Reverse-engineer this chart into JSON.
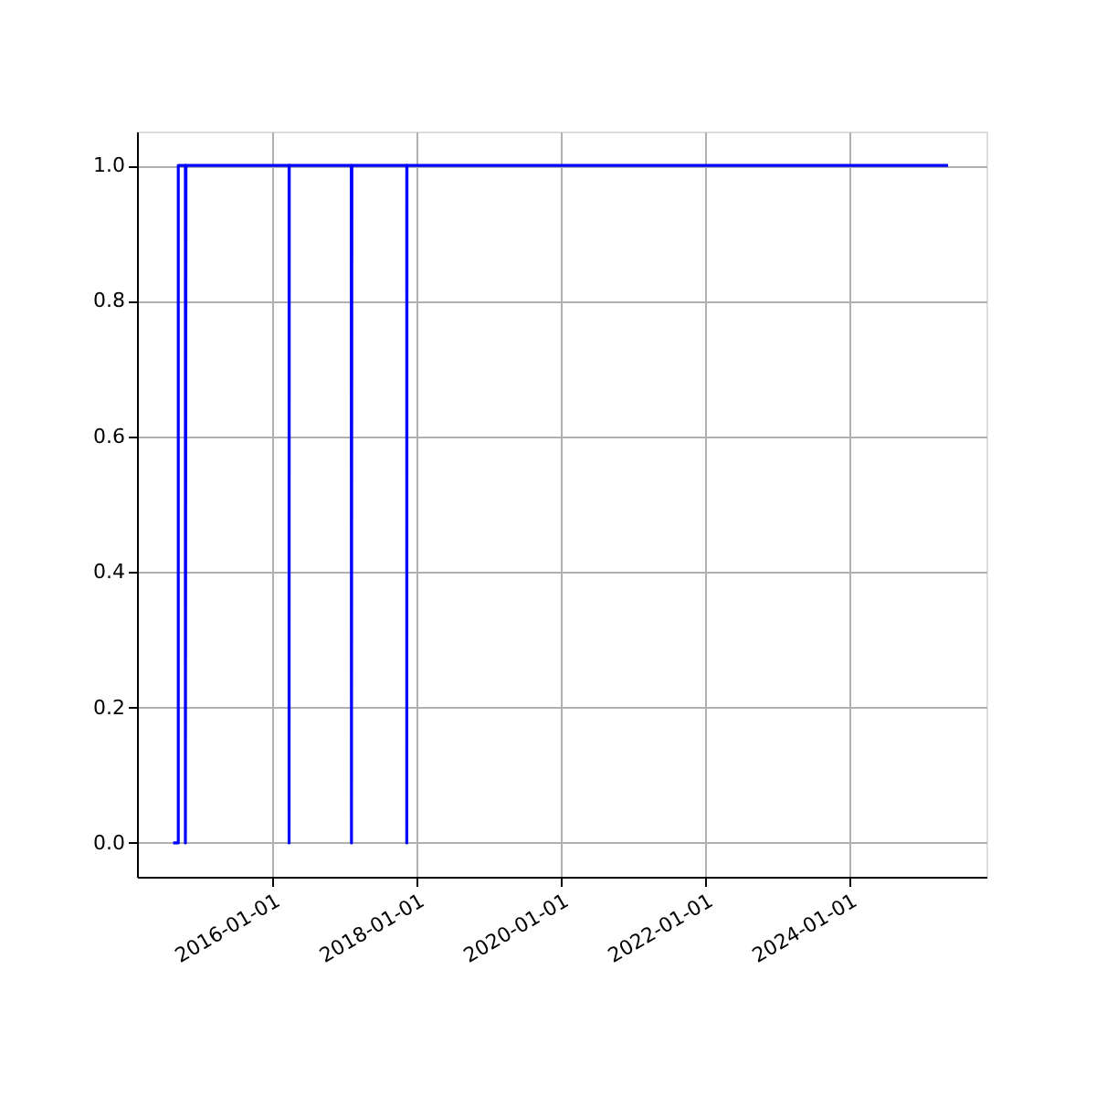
{
  "chart_data": {
    "type": "line",
    "x": [
      "2014-08-17",
      "2014-09-12",
      "2014-09-12",
      "2014-10-18",
      "2014-10-18",
      "2014-10-21",
      "2016-03-26",
      "2016-03-26",
      "2016-03-27",
      "2017-02-04",
      "2017-02-05",
      "2017-02-07",
      "2017-11-12",
      "2017-11-12",
      "2017-11-13",
      "2025-05-15"
    ],
    "series": [
      {
        "color": "#0000ff",
        "values": [
          0,
          0,
          1,
          1,
          0,
          1,
          1,
          0,
          1,
          1,
          0,
          1,
          1,
          0,
          1,
          1
        ]
      }
    ],
    "xlim": [
      "2014-02-15",
      "2025-11-25"
    ],
    "xticks": [
      "2016-01-01",
      "2018-01-01",
      "2020-01-01",
      "2022-01-01",
      "2024-01-01"
    ],
    "ylim": [
      -0.05,
      1.05
    ],
    "yticks": [
      {
        "value": 0,
        "label": "0.0"
      },
      {
        "value": 0.2,
        "label": "0.2"
      },
      {
        "value": 0.4,
        "label": "0.4"
      },
      {
        "value": 0.6,
        "label": "0.6"
      },
      {
        "value": 0.8,
        "label": "0.8"
      },
      {
        "value": 1,
        "label": "1.0"
      }
    ],
    "grid": true,
    "marker": "none",
    "line_style": "solid"
  }
}
